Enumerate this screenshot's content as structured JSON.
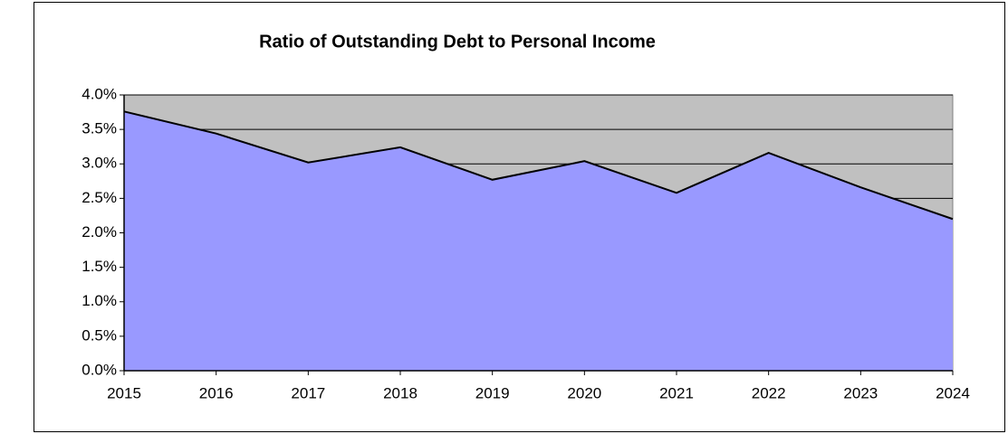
{
  "chart_data": {
    "type": "area",
    "title": "Ratio of Outstanding Debt to Personal Income",
    "categories": [
      "2015",
      "2016",
      "2017",
      "2018",
      "2019",
      "2020",
      "2021",
      "2022",
      "2023",
      "2024"
    ],
    "values": [
      3.76,
      3.44,
      3.02,
      3.24,
      2.77,
      3.04,
      2.58,
      3.16,
      2.66,
      2.2
    ],
    "color": "#9999ff",
    "line_color": "#000000",
    "plot_background": "#c0c0c0",
    "ylim": [
      0,
      4.0
    ],
    "yticks": [
      {
        "value": 0,
        "label": "0.0%"
      },
      {
        "value": 0.5,
        "label": "0.5%"
      },
      {
        "value": 1.0,
        "label": "1.0%"
      },
      {
        "value": 1.5,
        "label": "1.5%"
      },
      {
        "value": 2.0,
        "label": "2.0%"
      },
      {
        "value": 2.5,
        "label": "2.5%"
      },
      {
        "value": 3.0,
        "label": "3.0%"
      },
      {
        "value": 3.5,
        "label": "3.5%"
      },
      {
        "value": 4.0,
        "label": "4.0%"
      }
    ],
    "grid": true
  }
}
